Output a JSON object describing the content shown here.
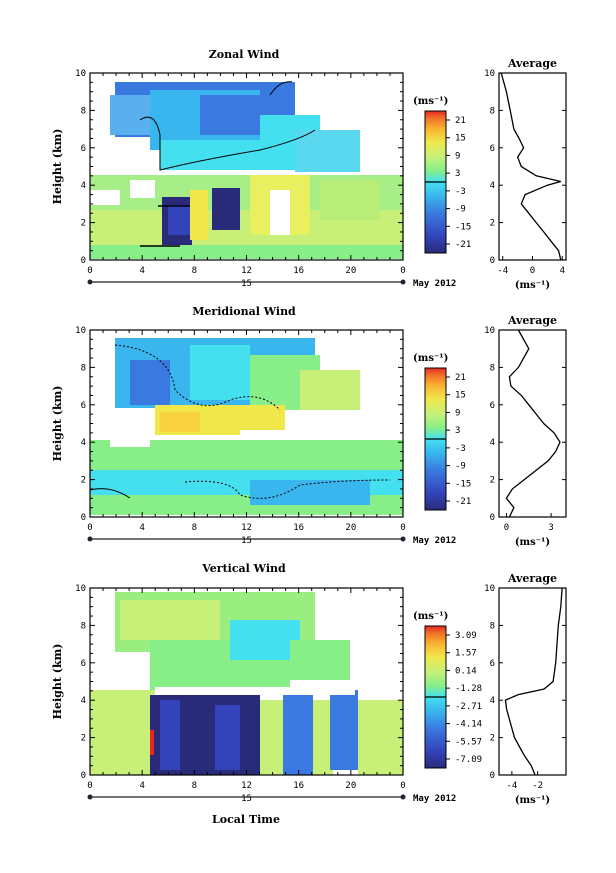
{
  "figure": {
    "x_axis_title": "Local Time",
    "date_label": "May 2012",
    "day_label": "15",
    "avg_title": "Average",
    "unit_label": "(ms⁻¹)",
    "avg_unit_label": "(ms⁻¹)",
    "ylabel": "Height (km)",
    "xticks": [
      "0",
      "4",
      "8",
      "12",
      "16",
      "20",
      "0"
    ],
    "yticks": [
      "0",
      "2",
      "4",
      "6",
      "8",
      "10"
    ]
  },
  "panels": [
    {
      "title": "Zonal Wind",
      "colorbar_ticks": [
        "21",
        "15",
        "9",
        "3",
        "-3",
        "-9",
        "-15",
        "-21"
      ],
      "avg_xticks": [
        "-4",
        "0",
        "4"
      ]
    },
    {
      "title": "Meridional Wind",
      "colorbar_ticks": [
        "21",
        "15",
        "9",
        "3",
        "-3",
        "-9",
        "-15",
        "-21"
      ],
      "avg_xticks": [
        "0",
        "3"
      ]
    },
    {
      "title": "Vertical Wind",
      "colorbar_ticks": [
        "3.09",
        "1.57",
        "0.14",
        "-1.28",
        "-2.71",
        "-4.14",
        "-5.57",
        "-7.09"
      ],
      "avg_xticks": [
        "-4",
        "-2"
      ]
    }
  ],
  "colors": {
    "scale": [
      "#2a2a7a",
      "#3344bb",
      "#3a7ae0",
      "#39b6ee",
      "#44e0f0",
      "#88ee88",
      "#c8f078",
      "#f0e84a",
      "#f8b030",
      "#f07028",
      "#e82820"
    ]
  },
  "chart_data": [
    {
      "type": "heatmap",
      "title": "Zonal Wind",
      "xlabel": "Local Time",
      "ylabel": "Height (km)",
      "xlim": [
        0,
        24
      ],
      "ylim": [
        0,
        10
      ],
      "colorbar": {
        "label": "(ms⁻¹)",
        "ticks": [
          21,
          15,
          9,
          3,
          -3,
          -9,
          -15,
          -21
        ],
        "range": [
          -24,
          24
        ]
      },
      "regions": [
        {
          "t": [
            2,
            16
          ],
          "h": [
            5.0,
            9.5
          ],
          "value": -6
        },
        {
          "t": [
            16,
            22
          ],
          "h": [
            4.8,
            7.5
          ],
          "value": -3
        },
        {
          "t": [
            0,
            24
          ],
          "h": [
            0,
            4.5
          ],
          "value": 3
        },
        {
          "t": [
            6,
            10
          ],
          "h": [
            0.5,
            3.5
          ],
          "value": -21
        },
        {
          "t": [
            10,
            13
          ],
          "h": [
            0.5,
            3.3
          ],
          "value": 9
        }
      ],
      "average": {
        "xlabel": "(ms⁻¹)",
        "xlim": [
          -4.5,
          4.5
        ],
        "xticks": [
          -4,
          0,
          4
        ],
        "height": [
          0,
          0.5,
          1,
          1.5,
          2,
          2.5,
          3,
          3.5,
          4,
          4.2,
          4.5,
          5,
          5.5,
          6,
          6.5,
          7,
          8,
          9,
          10
        ],
        "value": [
          3.8,
          3.5,
          2.5,
          1.5,
          0.5,
          -0.5,
          -1.5,
          -1.0,
          2.0,
          3.8,
          0.5,
          -1.5,
          -2.0,
          -1.2,
          -1.8,
          -2.5,
          -3.0,
          -3.5,
          -4.2
        ]
      }
    },
    {
      "type": "heatmap",
      "title": "Meridional Wind",
      "xlabel": "Local Time",
      "ylabel": "Height (km)",
      "xlim": [
        0,
        24
      ],
      "ylim": [
        0,
        10
      ],
      "colorbar": {
        "label": "(ms⁻¹)",
        "ticks": [
          21,
          15,
          9,
          3,
          -3,
          -9,
          -15,
          -21
        ],
        "range": [
          -24,
          24
        ]
      },
      "regions": [
        {
          "t": [
            2,
            20
          ],
          "h": [
            5.0,
            9.5
          ],
          "value": -3
        },
        {
          "t": [
            0,
            24
          ],
          "h": [
            0,
            4.5
          ],
          "value": 3
        },
        {
          "t": [
            6,
            16
          ],
          "h": [
            4.0,
            5.0
          ],
          "value": 6
        }
      ],
      "average": {
        "xlabel": "(ms⁻¹)",
        "xlim": [
          -0.5,
          4.0
        ],
        "xticks": [
          0,
          3
        ],
        "height": [
          0,
          0.5,
          1,
          1.5,
          2,
          2.5,
          3,
          3.5,
          4,
          4.5,
          5,
          5.5,
          6,
          6.5,
          7,
          7.5,
          8,
          9,
          10
        ],
        "value": [
          0.2,
          0.5,
          0.0,
          0.4,
          1.2,
          2.0,
          2.8,
          3.3,
          3.6,
          3.2,
          2.5,
          2.0,
          1.5,
          1.0,
          0.3,
          0.2,
          0.8,
          1.5,
          0.8
        ]
      }
    },
    {
      "type": "heatmap",
      "title": "Vertical Wind",
      "xlabel": "Local Time",
      "ylabel": "Height (km)",
      "xlim": [
        0,
        24
      ],
      "ylim": [
        0,
        10
      ],
      "colorbar": {
        "label": "(ms⁻¹)",
        "ticks": [
          3.09,
          1.57,
          0.14,
          -1.28,
          -2.71,
          -4.14,
          -5.57,
          -7.09
        ],
        "range": [
          -7.8,
          3.8
        ]
      },
      "regions": [
        {
          "t": [
            2,
            16
          ],
          "h": [
            4.5,
            10
          ],
          "value": -1.3
        },
        {
          "t": [
            0,
            24
          ],
          "h": [
            0,
            4.5
          ],
          "value": 0.14
        },
        {
          "t": [
            5,
            13
          ],
          "h": [
            0,
            4.5
          ],
          "value": -7.09
        },
        {
          "t": [
            15,
            20
          ],
          "h": [
            0.5,
            4.5
          ],
          "value": -4.5
        }
      ],
      "average": {
        "xlabel": "(ms⁻¹)",
        "xlim": [
          -5,
          0.2
        ],
        "xticks": [
          -4,
          -2
        ],
        "height": [
          0,
          0.5,
          1,
          1.5,
          2,
          2.5,
          3,
          3.5,
          4,
          4.3,
          4.6,
          5,
          6,
          7,
          8,
          9,
          10
        ],
        "value": [
          -2.2,
          -2.5,
          -3.0,
          -3.4,
          -3.8,
          -4.0,
          -4.2,
          -4.4,
          -4.5,
          -3.5,
          -1.5,
          -0.8,
          -0.6,
          -0.5,
          -0.4,
          -0.2,
          -0.1
        ]
      }
    }
  ]
}
